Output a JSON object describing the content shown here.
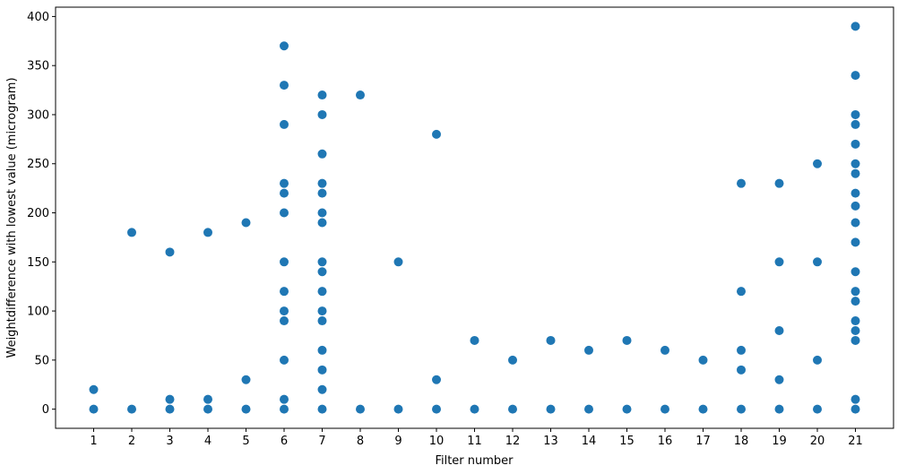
{
  "chart_data": {
    "type": "scatter",
    "xlabel": "Filter number",
    "ylabel": "Weightdifference with lowest value (microgram)",
    "color": "#1f77b4",
    "xlim": [
      0,
      22
    ],
    "ylim": [
      -19.5,
      409.5
    ],
    "xticks": [
      1,
      2,
      3,
      4,
      5,
      6,
      7,
      8,
      9,
      10,
      11,
      12,
      13,
      14,
      15,
      16,
      17,
      18,
      19,
      20,
      21
    ],
    "yticks": [
      0,
      50,
      100,
      150,
      200,
      250,
      300,
      350,
      400
    ],
    "x": [
      1,
      1,
      2,
      2,
      3,
      3,
      3,
      4,
      4,
      4,
      5,
      5,
      5,
      6,
      6,
      6,
      6,
      6,
      6,
      6,
      6,
      6,
      6,
      6,
      6,
      6,
      7,
      7,
      7,
      7,
      7,
      7,
      7,
      7,
      7,
      7,
      7,
      7,
      7,
      7,
      7,
      7,
      8,
      8,
      9,
      9,
      10,
      10,
      10,
      11,
      11,
      12,
      12,
      13,
      13,
      14,
      14,
      15,
      15,
      16,
      16,
      17,
      17,
      18,
      18,
      18,
      18,
      18,
      19,
      19,
      19,
      19,
      19,
      20,
      20,
      20,
      20,
      21,
      21,
      21,
      21,
      21,
      21,
      21,
      21,
      21,
      21,
      21,
      21,
      21,
      21,
      21,
      21,
      21,
      21,
      21
    ],
    "y": [
      20,
      0,
      180,
      0,
      160,
      10,
      0,
      180,
      10,
      0,
      190,
      30,
      0,
      370,
      330,
      290,
      230,
      220,
      200,
      150,
      120,
      100,
      90,
      50,
      10,
      0,
      320,
      300,
      260,
      230,
      220,
      200,
      190,
      150,
      140,
      120,
      100,
      90,
      60,
      40,
      20,
      0,
      320,
      0,
      150,
      0,
      280,
      30,
      0,
      70,
      0,
      50,
      0,
      70,
      0,
      60,
      0,
      70,
      0,
      60,
      0,
      50,
      0,
      230,
      120,
      60,
      40,
      0,
      230,
      150,
      80,
      30,
      0,
      250,
      150,
      50,
      0,
      390,
      340,
      300,
      290,
      270,
      250,
      240,
      220,
      207,
      190,
      170,
      140,
      120,
      110,
      90,
      80,
      70,
      10,
      0
    ]
  }
}
